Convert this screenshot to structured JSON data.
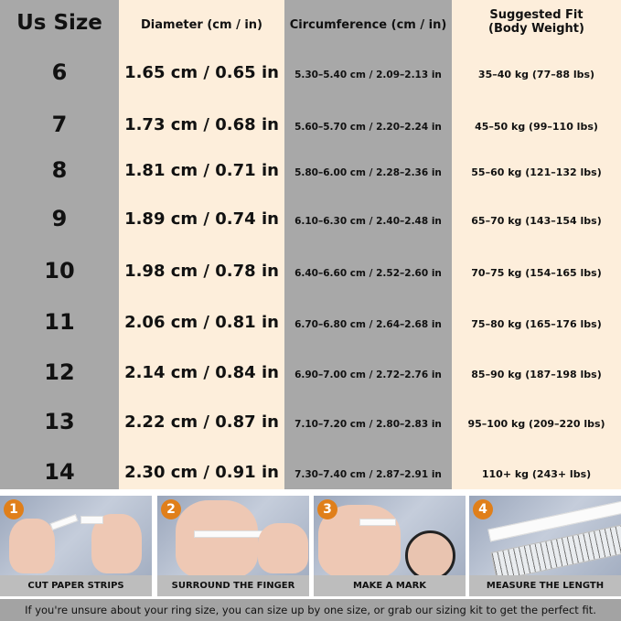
{
  "headers": [
    "Us Size",
    "Diameter (cm / in)",
    "Circumference (cm / in)",
    "Suggested Fit\n(Body Weight)"
  ],
  "rows": [
    {
      "size": "6",
      "diameter": "1.65 cm / 0.65 in",
      "circumference": "5.30–5.40 cm / 2.09–2.13 in",
      "fit": "35–40 kg (77–88 lbs)"
    },
    {
      "size": "7",
      "diameter": "1.73 cm / 0.68 in",
      "circumference": "5.60–5.70 cm / 2.20–2.24 in",
      "fit": "45–50 kg (99–110 lbs)"
    },
    {
      "size": "8",
      "diameter": "1.81 cm / 0.71 in",
      "circumference": "5.80–6.00 cm / 2.28–2.36 in",
      "fit": "55–60 kg (121–132 lbs)"
    },
    {
      "size": "9",
      "diameter": "1.89 cm / 0.74 in",
      "circumference": "6.10–6.30 cm / 2.40–2.48 in",
      "fit": "65–70 kg (143–154 lbs)"
    },
    {
      "size": "10",
      "diameter": "1.98 cm / 0.78 in",
      "circumference": "6.40–6.60 cm / 2.52–2.60 in",
      "fit": "70–75 kg (154–165 lbs)"
    },
    {
      "size": "11",
      "diameter": "2.06 cm / 0.81 in",
      "circumference": "6.70–6.80 cm / 2.64–2.68 in",
      "fit": "75–80 kg (165–176 lbs)"
    },
    {
      "size": "12",
      "diameter": "2.14 cm / 0.84 in",
      "circumference": "6.90–7.00 cm / 2.72–2.76 in",
      "fit": "85–90 kg (187–198 lbs)"
    },
    {
      "size": "13",
      "diameter": "2.22 cm / 0.87 in",
      "circumference": "7.10–7.20 cm / 2.80–2.83 in",
      "fit": "95–100 kg (209–220 lbs)"
    },
    {
      "size": "14",
      "diameter": "2.30 cm / 0.91 in",
      "circumference": "7.30–7.40 cm / 2.87–2.91 in",
      "fit": "110+ kg (243+ lbs)"
    }
  ],
  "steps": [
    {
      "number": "1",
      "label": "CUT PAPER STRIPS"
    },
    {
      "number": "2",
      "label": "SURROUND THE FINGER"
    },
    {
      "number": "3",
      "label": "MAKE A MARK"
    },
    {
      "number": "4",
      "label": "MEASURE THE LENGTH"
    }
  ],
  "footer": "If you're unsure about your ring size, you can size up by one size, or grab our sizing kit to get the perfect fit.",
  "colors": {
    "gray_column": "#a8a8a8",
    "cream_column": "#fdeedb",
    "step_badge": "#e07f1a"
  }
}
